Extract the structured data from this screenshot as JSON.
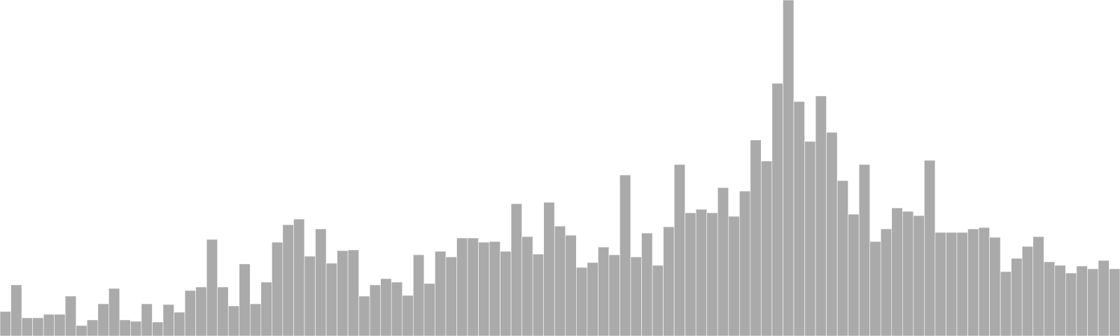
{
  "chart_data": {
    "type": "bar",
    "title": "",
    "xlabel": "",
    "ylabel": "",
    "ylim": [
      0,
      480
    ],
    "grid": false,
    "legend": "none",
    "colors": {
      "bar_fill": "#aaaaaa",
      "bar_stroke": "#ffffff",
      "background": "#ffffff"
    },
    "values": [
      35,
      73,
      26,
      26,
      31,
      31,
      57,
      15,
      23,
      46,
      68,
      23,
      21,
      46,
      20,
      45,
      34,
      65,
      70,
      138,
      70,
      43,
      103,
      46,
      77,
      134,
      159,
      167,
      114,
      153,
      104,
      122,
      123,
      57,
      73,
      82,
      77,
      58,
      116,
      75,
      121,
      113,
      140,
      140,
      134,
      135,
      121,
      189,
      142,
      117,
      191,
      157,
      144,
      98,
      105,
      127,
      116,
      230,
      113,
      147,
      101,
      156,
      245,
      176,
      181,
      176,
      212,
      171,
      207,
      280,
      250,
      361,
      480,
      335,
      278,
      343,
      291,
      222,
      174,
      245,
      135,
      153,
      183,
      178,
      172,
      251,
      148,
      148,
      148,
      153,
      155,
      141,
      92,
      111,
      128,
      142,
      106,
      101,
      90,
      100,
      96,
      108,
      96
    ]
  }
}
